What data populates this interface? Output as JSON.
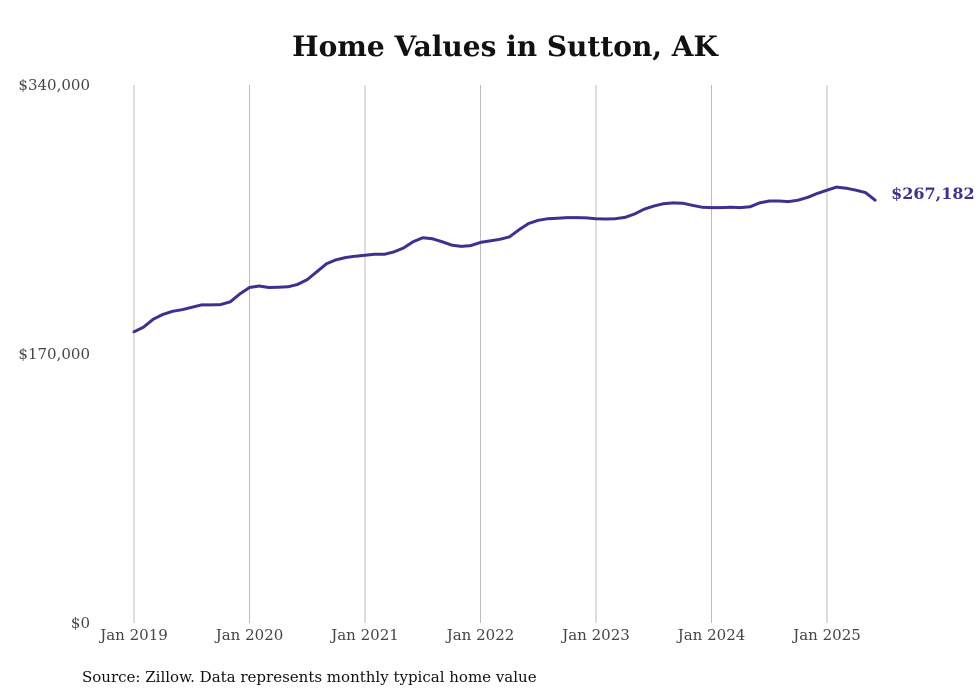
{
  "chart_data": {
    "type": "line",
    "title": "Home Values in Sutton, AK",
    "xlabel": "",
    "ylabel": "",
    "ylim": [
      0,
      340000
    ],
    "y_ticks": [
      {
        "value": 0,
        "label": "$0"
      },
      {
        "value": 170000,
        "label": "$170,000"
      },
      {
        "value": 340000,
        "label": "$340,000"
      }
    ],
    "x_ticks": [
      "Jan 2019",
      "Jan 2020",
      "Jan 2021",
      "Jan 2022",
      "Jan 2023",
      "Jan 2024",
      "Jan 2025"
    ],
    "grid": "vertical",
    "line_color": "#3b3191",
    "end_label": "$267,182",
    "series": [
      {
        "name": "",
        "x": [
          "2019-01",
          "2019-02",
          "2019-03",
          "2019-04",
          "2019-05",
          "2019-06",
          "2019-07",
          "2019-08",
          "2019-09",
          "2019-10",
          "2019-11",
          "2019-12",
          "2020-01",
          "2020-02",
          "2020-03",
          "2020-04",
          "2020-05",
          "2020-06",
          "2020-07",
          "2020-08",
          "2020-09",
          "2020-10",
          "2020-11",
          "2020-12",
          "2021-01",
          "2021-02",
          "2021-03",
          "2021-04",
          "2021-05",
          "2021-06",
          "2021-07",
          "2021-08",
          "2021-09",
          "2021-10",
          "2021-11",
          "2021-12",
          "2022-01",
          "2022-02",
          "2022-03",
          "2022-04",
          "2022-05",
          "2022-06",
          "2022-07",
          "2022-08",
          "2022-09",
          "2022-10",
          "2022-11",
          "2022-12",
          "2023-01",
          "2023-02",
          "2023-03",
          "2023-04",
          "2023-05",
          "2023-06",
          "2023-07",
          "2023-08",
          "2023-09",
          "2023-10",
          "2023-11",
          "2023-12",
          "2024-01",
          "2024-02",
          "2024-03",
          "2024-04",
          "2024-05",
          "2024-06",
          "2024-07",
          "2024-08",
          "2024-09",
          "2024-10",
          "2024-11",
          "2024-12",
          "2025-01",
          "2025-02",
          "2025-03",
          "2025-04",
          "2025-05",
          "2025-06"
        ],
        "values": [
          184000,
          187000,
          192000,
          195000,
          197000,
          198000,
          199500,
          201000,
          201000,
          201200,
          203000,
          208000,
          212000,
          213000,
          212000,
          212200,
          212500,
          214000,
          217000,
          222000,
          227000,
          229500,
          231000,
          231800,
          232400,
          233000,
          233000,
          234500,
          237000,
          241000,
          243500,
          242800,
          241000,
          238800,
          238000,
          238500,
          240500,
          241500,
          242500,
          244000,
          248500,
          252500,
          254500,
          255500,
          255800,
          256200,
          256200,
          256000,
          255500,
          255300,
          255500,
          256300,
          258500,
          261500,
          263500,
          265000,
          265500,
          265300,
          264000,
          262800,
          262500,
          262500,
          262800,
          262500,
          263000,
          265500,
          266700,
          266700,
          266300,
          267200,
          269000,
          271500,
          273500,
          275500,
          274800,
          273500,
          272000,
          267182
        ]
      }
    ]
  },
  "source_text": "Source: Zillow. Data represents monthly typical home value"
}
